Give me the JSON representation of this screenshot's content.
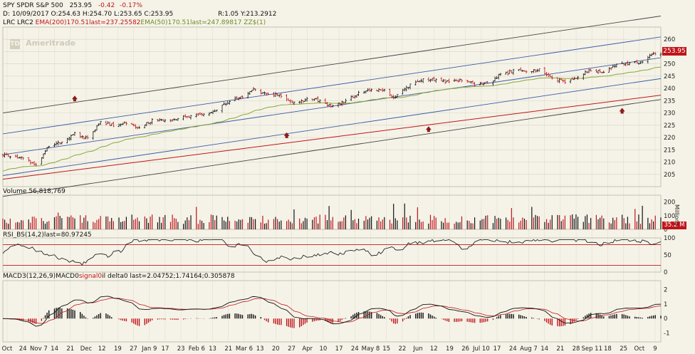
{
  "header": {
    "symbol": "SPY SPDR S&P 500",
    "last": "253.95",
    "change": "-0.42",
    "change_pct": "-0.17%",
    "ohlc_line": "D: 10/09/2017 O:254.63 H:254.70 L:253.65 C:253.95",
    "range_line": "R:1.05 Y:213.2912",
    "studies_line_a": "LRC LRC2 ",
    "studies_line_b": "EMA(200)",
    "studies_line_c": "170.51last=237.25582",
    "studies_line_d": "EMA(50)",
    "studies_line_e": "170.51last=247.89817 ZZ$(1)"
  },
  "watermark": "Ameritrade",
  "watermark_logo": "TD",
  "colors": {
    "background": "#f5f3e8",
    "grid": "#d8d4c2",
    "price_up": "#111111",
    "price_down": "#c0141a",
    "lrc_outer": "#444444",
    "lrc_inner": "#3a5aa8",
    "ema200": "#c0141a",
    "ema50": "#8aa63a",
    "price_tag": "#c0141a",
    "arrow": "#8b1a1a"
  },
  "price_tag": "253.95",
  "volume_panel": {
    "title": "Volume 56,818,769",
    "axis_unit": "Millions",
    "ticks": [
      "200",
      "100",
      "0"
    ],
    "tag": "35.2 M"
  },
  "rsi_panel": {
    "title": "RSI_BS(14,2)",
    "last": "last=80.97245",
    "ticks": [
      "100",
      "50",
      "0"
    ]
  },
  "macd_panel": {
    "title_a": "MACD3(12,26,9)",
    "title_b": "MACD0",
    "title_c": "signal0",
    "title_d": "il delta0 last=2.04752;1.74164;0.305878",
    "ticks": [
      "2",
      "1",
      "0",
      "-1"
    ]
  },
  "x_axis": {
    "labels": [
      "Oct",
      "24",
      "Nov 7",
      "14",
      "21",
      "Dec",
      "12",
      "19",
      "27",
      "Jan 9",
      "17",
      "23",
      "Feb 6",
      "13",
      "21",
      "Mar 6",
      "13",
      "20",
      "27",
      "Apr",
      "10",
      "17",
      "24",
      "May 8",
      "15",
      "22",
      "Jun",
      "12",
      "19",
      "26",
      "Jul 10",
      "17",
      "24",
      "Aug 7",
      "14",
      "21",
      "28",
      "Sep 11",
      "18",
      "25",
      "Oct",
      "9"
    ]
  },
  "chart_data": {
    "type": "candlestick",
    "title": "SPY SPDR S&P 500",
    "ylim": [
      200,
      265
    ],
    "y_ticks": [
      205,
      210,
      215,
      220,
      225,
      230,
      235,
      240,
      245,
      250,
      255,
      260
    ],
    "x_range": [
      "2016-10-17",
      "2017-10-09"
    ],
    "close_series": [
      {
        "date": "2016-10-17",
        "close": 213.0
      },
      {
        "date": "2016-10-24",
        "close": 212.5
      },
      {
        "date": "2016-10-31",
        "close": 210.5
      },
      {
        "date": "2016-11-04",
        "close": 208.5
      },
      {
        "date": "2016-11-11",
        "close": 216.5
      },
      {
        "date": "2016-11-18",
        "close": 218.5
      },
      {
        "date": "2016-11-25",
        "close": 221.5
      },
      {
        "date": "2016-12-02",
        "close": 219.7
      },
      {
        "date": "2016-12-09",
        "close": 226.5
      },
      {
        "date": "2016-12-16",
        "close": 225.1
      },
      {
        "date": "2016-12-23",
        "close": 226.0
      },
      {
        "date": "2016-12-30",
        "close": 223.5
      },
      {
        "date": "2017-01-06",
        "close": 227.0
      },
      {
        "date": "2017-01-13",
        "close": 227.0
      },
      {
        "date": "2017-01-20",
        "close": 227.4
      },
      {
        "date": "2017-01-27",
        "close": 229.0
      },
      {
        "date": "2017-02-03",
        "close": 229.3
      },
      {
        "date": "2017-02-10",
        "close": 231.5
      },
      {
        "date": "2017-02-17",
        "close": 235.1
      },
      {
        "date": "2017-02-24",
        "close": 236.7
      },
      {
        "date": "2017-03-01",
        "close": 239.5
      },
      {
        "date": "2017-03-10",
        "close": 237.7
      },
      {
        "date": "2017-03-17",
        "close": 237.0
      },
      {
        "date": "2017-03-24",
        "close": 234.0
      },
      {
        "date": "2017-03-31",
        "close": 235.7
      },
      {
        "date": "2017-04-07",
        "close": 235.2
      },
      {
        "date": "2017-04-13",
        "close": 232.5
      },
      {
        "date": "2017-04-21",
        "close": 234.6
      },
      {
        "date": "2017-04-28",
        "close": 238.1
      },
      {
        "date": "2017-05-05",
        "close": 239.7
      },
      {
        "date": "2017-05-12",
        "close": 239.1
      },
      {
        "date": "2017-05-17",
        "close": 235.8
      },
      {
        "date": "2017-05-26",
        "close": 241.7
      },
      {
        "date": "2017-06-02",
        "close": 244.0
      },
      {
        "date": "2017-06-09",
        "close": 243.4
      },
      {
        "date": "2017-06-16",
        "close": 242.6
      },
      {
        "date": "2017-06-23",
        "close": 243.3
      },
      {
        "date": "2017-06-30",
        "close": 241.8
      },
      {
        "date": "2017-07-07",
        "close": 242.1
      },
      {
        "date": "2017-07-14",
        "close": 245.6
      },
      {
        "date": "2017-07-21",
        "close": 247.0
      },
      {
        "date": "2017-07-28",
        "close": 247.3
      },
      {
        "date": "2017-08-04",
        "close": 247.4
      },
      {
        "date": "2017-08-11",
        "close": 243.8
      },
      {
        "date": "2017-08-18",
        "close": 242.7
      },
      {
        "date": "2017-08-25",
        "close": 244.6
      },
      {
        "date": "2017-09-01",
        "close": 247.8
      },
      {
        "date": "2017-09-08",
        "close": 246.6
      },
      {
        "date": "2017-09-15",
        "close": 250.1
      },
      {
        "date": "2017-09-22",
        "close": 250.1
      },
      {
        "date": "2017-09-29",
        "close": 251.2
      },
      {
        "date": "2017-10-06",
        "close": 254.4
      },
      {
        "date": "2017-10-09",
        "close": 253.95
      }
    ],
    "ema200": {
      "start": 203.0,
      "end": 237.26
    },
    "ema50": {
      "start": 206.0,
      "end": 247.9
    },
    "lrc_channel": {
      "start_mid": 213.0,
      "end_mid": 252.5,
      "inner_offset": 8.5,
      "outer_offset": 17.0
    },
    "arrows": [
      {
        "date": "2016-11-25",
        "price": 236.5
      },
      {
        "date": "2017-03-20",
        "price": 221.5
      },
      {
        "date": "2017-06-05",
        "price": 224.0
      },
      {
        "date": "2017-09-18",
        "price": 231.5
      }
    ]
  }
}
